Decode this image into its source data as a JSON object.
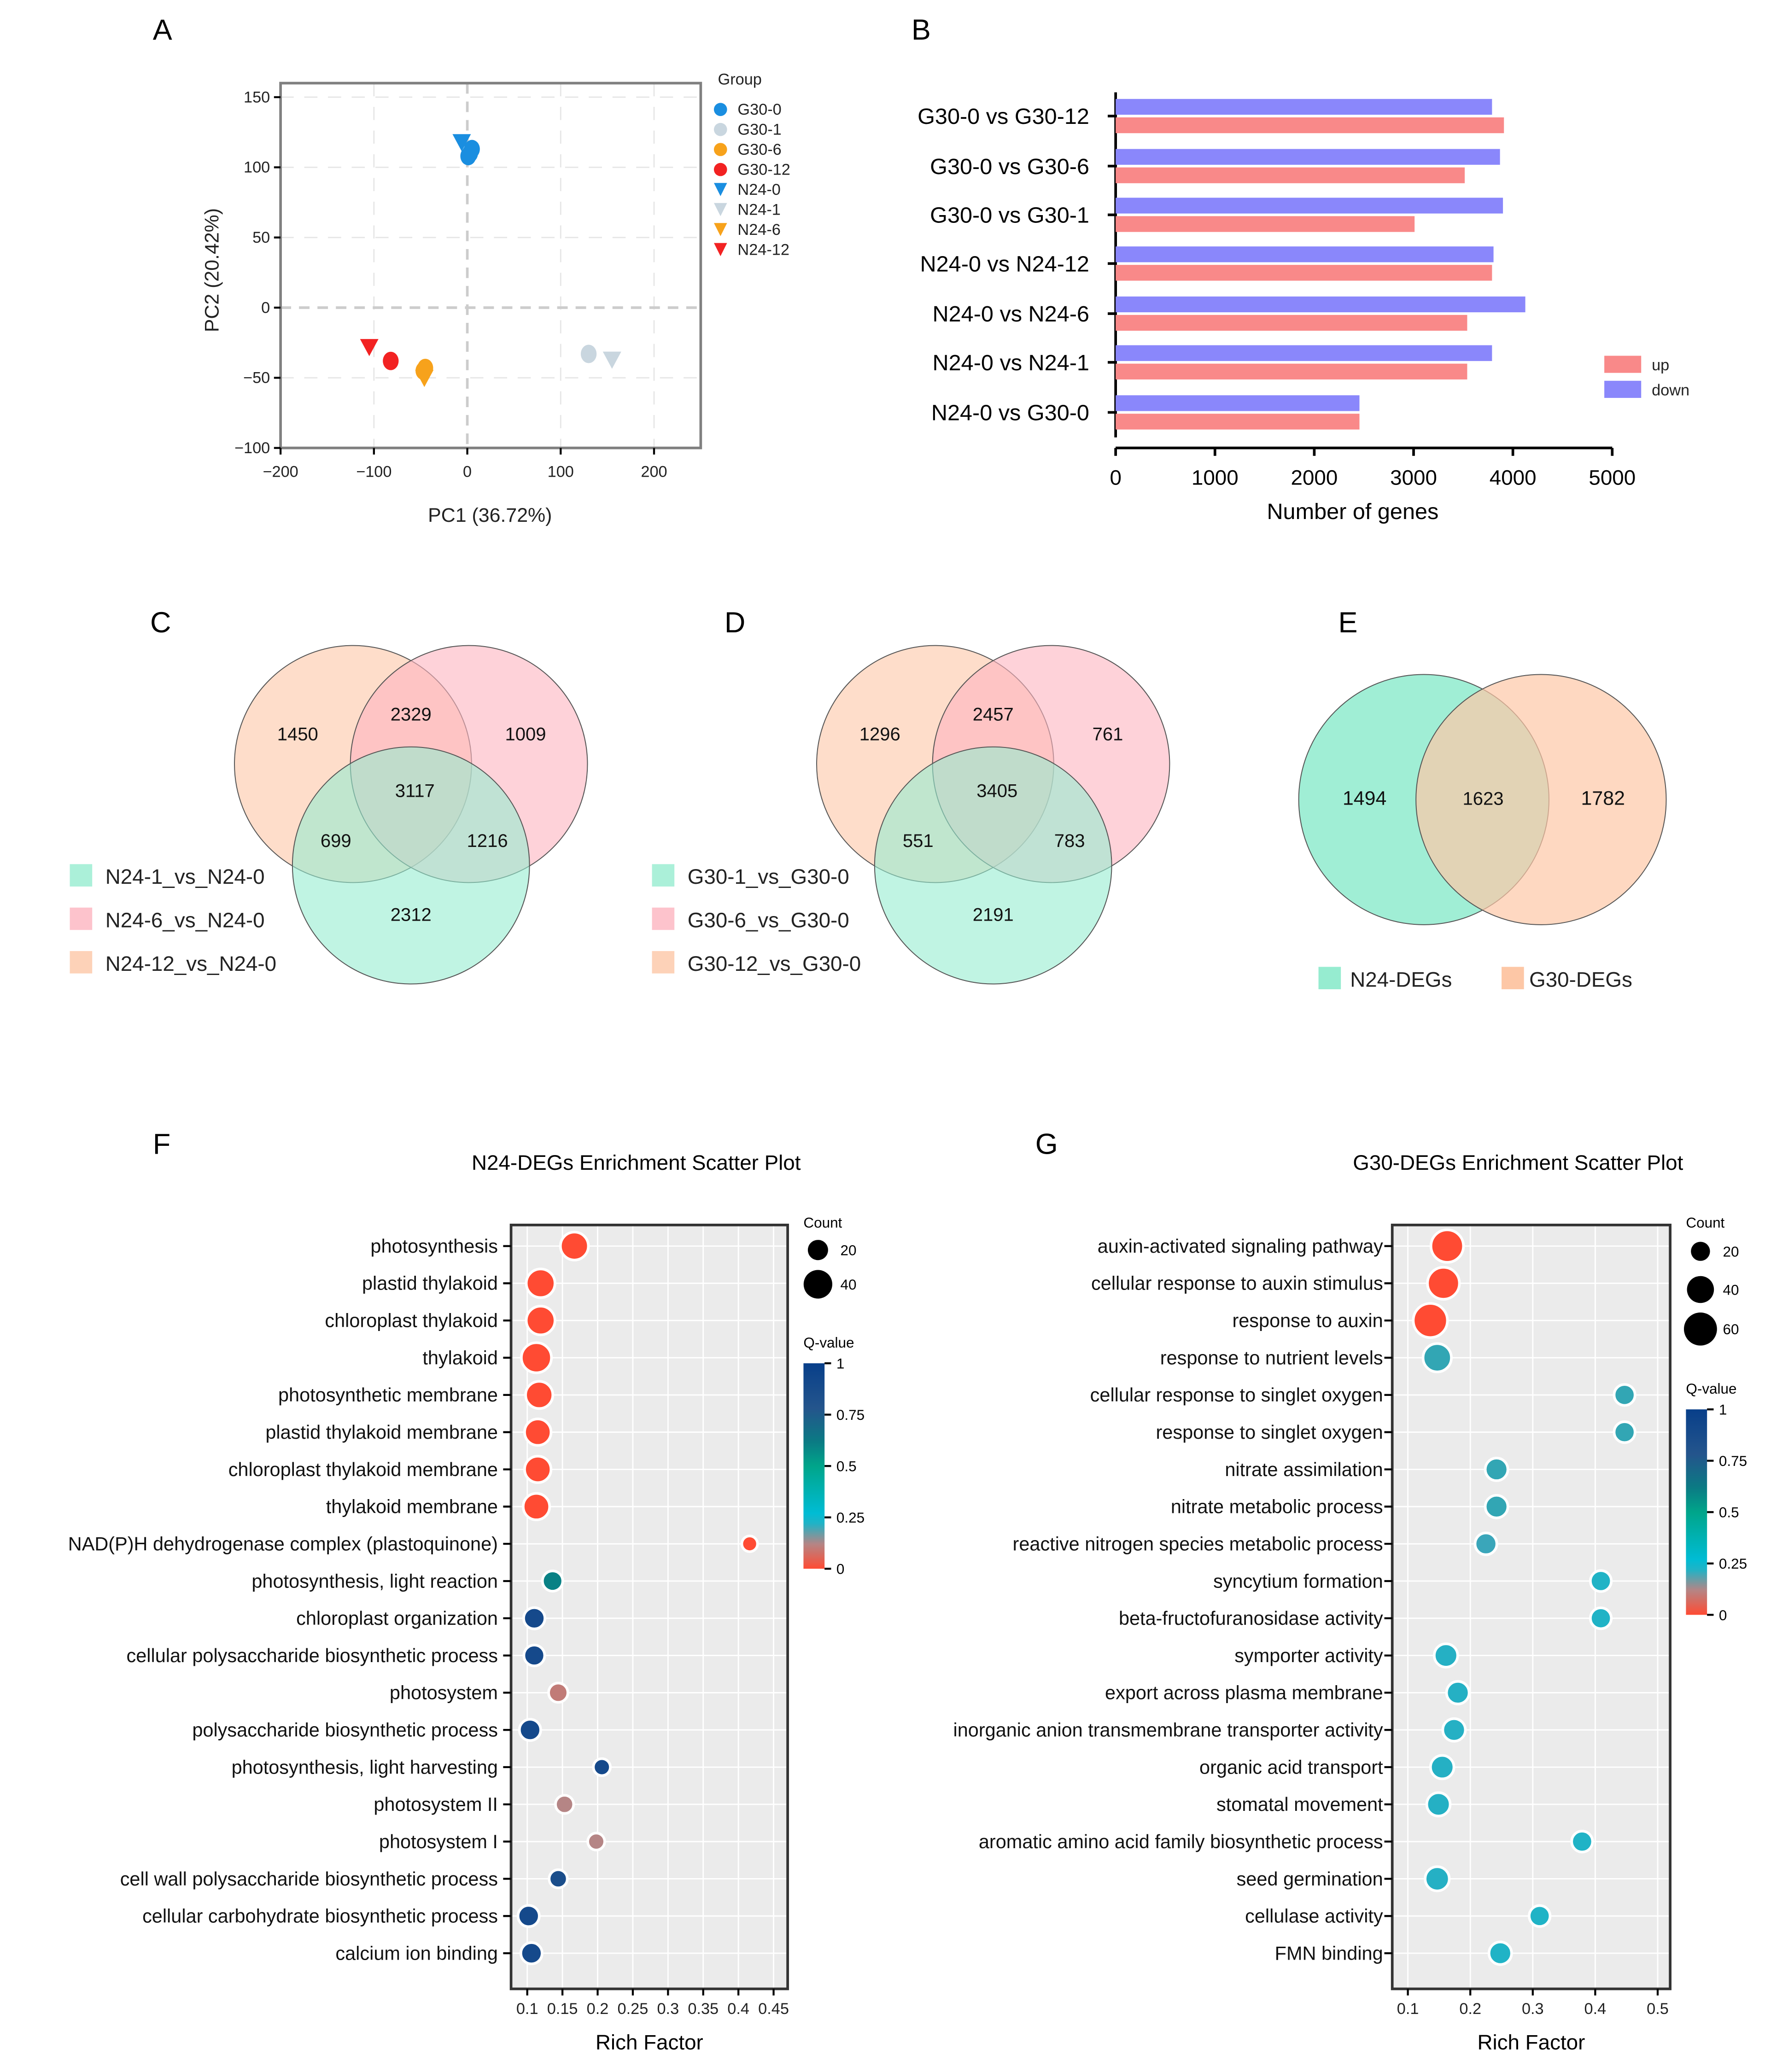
{
  "panel_labels": {
    "A": "A",
    "B": "B",
    "C": "C",
    "D": "D",
    "E": "E",
    "F": "F",
    "G": "G"
  },
  "chart_data": [
    {
      "id": "A",
      "type": "scatter",
      "xlabel": "PC1 (36.72%)",
      "ylabel": "PC2 (20.42%)",
      "xlim": [
        -200,
        250
      ],
      "ylim": [
        -100,
        160
      ],
      "xticks": [
        "−200",
        "−100",
        "0",
        "100",
        "200"
      ],
      "xtick_values": [
        -200,
        -100,
        0,
        100,
        200
      ],
      "yticks": [
        "150",
        "100",
        "50",
        "0",
        "−50",
        "−100"
      ],
      "ytick_values": [
        150,
        100,
        50,
        0,
        -50,
        -100
      ],
      "grid": true,
      "legend_title": "Group",
      "legend_position": "right",
      "series": [
        {
          "name": "G30-0",
          "shape": "circle",
          "color": "#1a8ee0",
          "points": [
            [
              3,
              110
            ],
            [
              5,
              113
            ],
            [
              1,
              108
            ]
          ]
        },
        {
          "name": "G30-1",
          "shape": "circle",
          "color": "#c9d6df",
          "points": [
            [
              130,
              -33
            ]
          ]
        },
        {
          "name": "G30-6",
          "shape": "circle",
          "color": "#f7a21b",
          "points": [
            [
              -47,
              -45
            ],
            [
              -45,
              -43
            ]
          ]
        },
        {
          "name": "G30-12",
          "shape": "circle",
          "color": "#f22222",
          "points": [
            [
              -82,
              -38
            ]
          ]
        },
        {
          "name": "N24-0",
          "shape": "triangle",
          "color": "#1a8ee0",
          "points": [
            [
              -6,
              118
            ]
          ]
        },
        {
          "name": "N24-1",
          "shape": "triangle",
          "color": "#c9d6df",
          "points": [
            [
              155,
              -37
            ]
          ]
        },
        {
          "name": "N24-6",
          "shape": "triangle",
          "color": "#f7a21b",
          "points": [
            [
              -46,
              -50
            ]
          ]
        },
        {
          "name": "N24-12",
          "shape": "triangle",
          "color": "#f22222",
          "points": [
            [
              -105,
              -28
            ]
          ]
        }
      ]
    },
    {
      "id": "B",
      "type": "bar",
      "orientation": "horizontal",
      "categories": [
        "G30-0 vs G30-12",
        "G30-0 vs G30-6",
        "G30-0 vs G30-1",
        "N24-0 vs N24-12",
        "N24-0 vs N24-6",
        "N24-0 vs N24-1",
        "N24-0 vs G30-0"
      ],
      "series": [
        {
          "name": "down",
          "color": "#8a87fb",
          "values": [
            3790,
            3870,
            3900,
            3805,
            4125,
            3790,
            2455
          ]
        },
        {
          "name": "up",
          "color": "#f98989",
          "values": [
            3910,
            3515,
            3010,
            3790,
            3540,
            3540,
            2455
          ]
        }
      ],
      "xlabel": "Number of genes",
      "xlim": [
        0,
        5000
      ],
      "xticks": [
        "0",
        "1000",
        "2000",
        "3000",
        "4000",
        "5000"
      ],
      "legend_position": "right"
    },
    {
      "id": "C",
      "type": "venn",
      "sets": [
        {
          "name": "N24-1_vs_N24-0",
          "color": "#96ecd0"
        },
        {
          "name": "N24-6_vs_N24-0",
          "color": "#fdb4bf"
        },
        {
          "name": "N24-12_vs_N24-0",
          "color": "#fdc7a6"
        }
      ],
      "regions": {
        "only_12": "1450",
        "12_6": "2329",
        "only_6": "1009",
        "all": "3117",
        "12_1": "699",
        "6_1": "1216",
        "only_1": "2312"
      }
    },
    {
      "id": "D",
      "type": "venn",
      "sets": [
        {
          "name": "G30-1_vs_G30-0",
          "color": "#96ecd0"
        },
        {
          "name": "G30-6_vs_G30-0",
          "color": "#fdb4bf"
        },
        {
          "name": "G30-12_vs_G30-0",
          "color": "#fdc7a6"
        }
      ],
      "regions": {
        "only_12": "1296",
        "12_6": "2457",
        "only_6": "761",
        "all": "3405",
        "12_1": "551",
        "6_1": "783",
        "only_1": "2191"
      }
    },
    {
      "id": "E",
      "type": "venn",
      "sets": [
        {
          "name": "N24-DEGs",
          "color": "#96ecd0"
        },
        {
          "name": "G30-DEGs",
          "color": "#fdc7a6"
        }
      ],
      "regions": {
        "only_a": "1494",
        "both": "1623",
        "only_b": "1782"
      }
    },
    {
      "id": "F",
      "type": "scatter",
      "title": "N24-DEGs Enrichment Scatter Plot",
      "xlabel": "Rich Factor",
      "xlim": [
        0.077,
        0.47
      ],
      "xticks": [
        "0.1",
        "0.15",
        "0.2",
        "0.25",
        "0.3",
        "0.35",
        "0.4",
        "0.45"
      ],
      "xtick_values": [
        0.1,
        0.15,
        0.2,
        0.25,
        0.3,
        0.35,
        0.4,
        0.45
      ],
      "size_legend_title": "Count",
      "size_legend": [
        "20",
        "40"
      ],
      "size_legend_values": [
        20,
        40
      ],
      "color_legend_title": "Q-value",
      "color_ticks": [
        "1",
        "0.75",
        "0.5",
        "0.25",
        "0"
      ],
      "terms": [
        "photosynthesis",
        "plastid thylakoid",
        "chloroplast thylakoid",
        "thylakoid",
        "photosynthetic membrane",
        "plastid thylakoid membrane",
        "chloroplast thylakoid membrane",
        "thylakoid membrane",
        "NAD(P)H dehydrogenase complex (plastoquinone)",
        "photosynthesis, light reaction",
        "chloroplast organization",
        "cellular polysaccharide biosynthetic process",
        "photosystem",
        "polysaccharide biosynthetic process",
        "photosynthesis, light harvesting",
        "photosystem II",
        "photosystem I",
        "cell wall polysaccharide biosynthetic process",
        "cellular carbohydrate biosynthetic process",
        "calcium ion binding"
      ],
      "rich_factor": [
        0.167,
        0.119,
        0.119,
        0.113,
        0.117,
        0.115,
        0.115,
        0.113,
        0.416,
        0.136,
        0.11,
        0.11,
        0.144,
        0.104,
        0.206,
        0.153,
        0.198,
        0.144,
        0.102,
        0.106
      ],
      "count": [
        38,
        40,
        40,
        44,
        36,
        34,
        34,
        34,
        12,
        20,
        22,
        21,
        18,
        22,
        14,
        16,
        14,
        16,
        22,
        22
      ],
      "q_value": [
        0,
        0,
        0,
        0,
        0,
        0,
        0,
        0,
        0,
        0.6,
        0.9,
        0.9,
        0.1,
        0.9,
        0.9,
        0.12,
        0.12,
        0.85,
        0.9,
        0.9
      ]
    },
    {
      "id": "G",
      "type": "scatter",
      "title": "G30-DEGs Enrichment Scatter Plot",
      "xlabel": "Rich Factor",
      "xlim": [
        0.075,
        0.52
      ],
      "xticks": [
        "0.1",
        "0.2",
        "0.3",
        "0.4",
        "0.5"
      ],
      "xtick_values": [
        0.1,
        0.2,
        0.3,
        0.4,
        0.5
      ],
      "size_legend_title": "Count",
      "size_legend": [
        "20",
        "40",
        "60"
      ],
      "size_legend_values": [
        20,
        40,
        60
      ],
      "color_legend_title": "Q-value",
      "color_ticks": [
        "1",
        "0.75",
        "0.5",
        "0.25",
        "0"
      ],
      "terms": [
        "auxin-activated signaling pathway",
        "cellular response to auxin stimulus",
        "response to auxin",
        "response to nutrient levels",
        "cellular response to singlet oxygen",
        "response to singlet oxygen",
        "nitrate assimilation",
        "nitrate metabolic process",
        "reactive nitrogen species metabolic process",
        "syncytium formation",
        "beta-fructofuranosidase activity",
        "symporter activity",
        "export across plasma membrane",
        "inorganic anion transmembrane transporter activity",
        "organic acid transport",
        "stomatal movement",
        "aromatic amino acid family biosynthetic process",
        "seed germination",
        "cellulase activity",
        "FMN binding"
      ],
      "rich_factor": [
        0.163,
        0.157,
        0.136,
        0.147,
        0.447,
        0.447,
        0.242,
        0.242,
        0.225,
        0.409,
        0.409,
        0.161,
        0.18,
        0.174,
        0.155,
        0.149,
        0.379,
        0.147,
        0.311,
        0.248
      ],
      "count": [
        58,
        56,
        64,
        44,
        24,
        24,
        28,
        28,
        26,
        24,
        24,
        30,
        28,
        28,
        30,
        30,
        24,
        32,
        24,
        28
      ],
      "q_value": [
        0,
        0,
        0,
        0.3,
        0.3,
        0.3,
        0.3,
        0.3,
        0.27,
        0.22,
        0.22,
        0.23,
        0.23,
        0.23,
        0.23,
        0.23,
        0.22,
        0.23,
        0.22,
        0.22
      ]
    }
  ]
}
